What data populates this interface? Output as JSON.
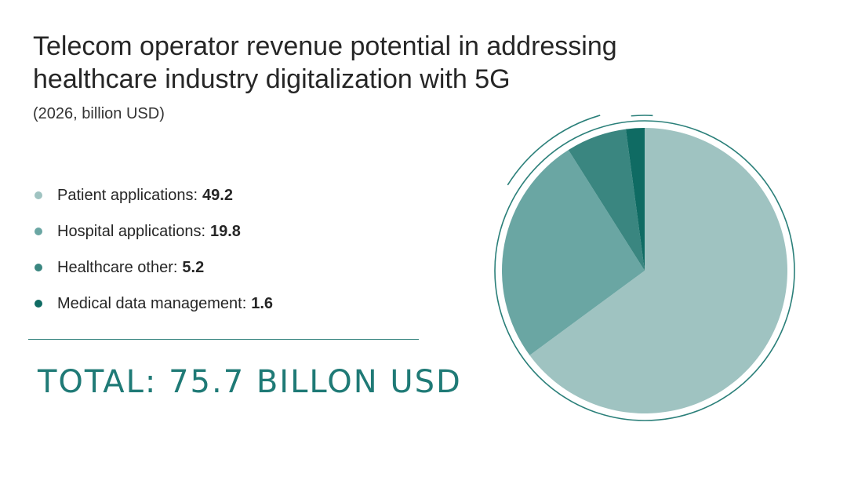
{
  "title_lines": [
    "Telecom operator revenue potential in addressing",
    "healthcare industry digitalization with 5G"
  ],
  "subtitle": "(2026, billion USD)",
  "legend": [
    {
      "label": "Patient applications:",
      "value": "49.2"
    },
    {
      "label": "Hospital applications:",
      "value": "19.8"
    },
    {
      "label": "Healthcare other:",
      "value": "5.2"
    },
    {
      "label": "Medical data management:",
      "value": "1.6"
    }
  ],
  "total": "TOTAL: 75.7 BILLON USD",
  "colors": {
    "accent": "#1f7a76",
    "ring": "#2a7f79"
  },
  "chart_data": {
    "type": "pie",
    "title": "Telecom operator revenue potential in addressing healthcare industry digitalization with 5G",
    "subtitle": "(2026, billion USD)",
    "legend_position": "left",
    "categories": [
      "Patient applications",
      "Hospital applications",
      "Healthcare other",
      "Medical data management"
    ],
    "values": [
      49.2,
      19.8,
      5.2,
      1.6
    ],
    "colors": [
      "#9fc3c1",
      "#6aa6a3",
      "#3a8680",
      "#0f6b63"
    ],
    "start_angle_deg": 0,
    "direction": "clockwise"
  }
}
